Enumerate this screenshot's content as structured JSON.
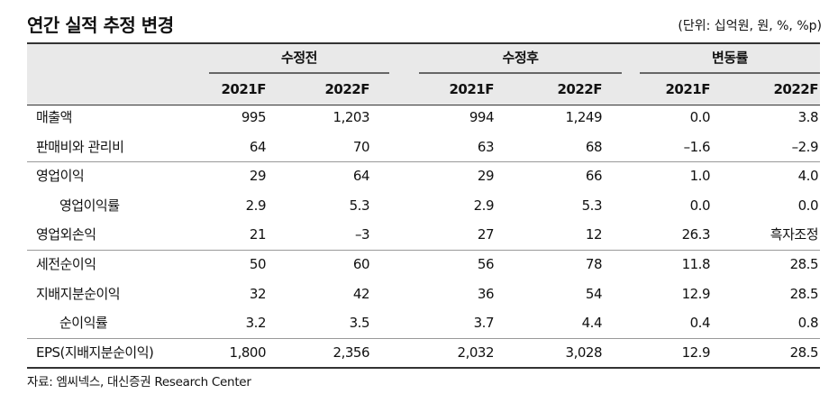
{
  "title": "연간 실적 추정 변경",
  "unit": "(단위: 십억원, 원, %, %p)",
  "table": {
    "groups": [
      "수정전",
      "수정후",
      "변동률"
    ],
    "columns": [
      "2021F",
      "2022F",
      "2021F",
      "2022F",
      "2021F",
      "2022F"
    ],
    "rows": [
      [
        "매출액",
        "995",
        "1,203",
        "994",
        "1,249",
        "0.0",
        "3.8"
      ],
      [
        "판매비와 관리비",
        "64",
        "70",
        "63",
        "68",
        "–1.6",
        "–2.9"
      ],
      [
        "영업이익",
        "29",
        "64",
        "29",
        "66",
        "1.0",
        "4.0"
      ],
      [
        "영업이익률",
        "2.9",
        "5.3",
        "2.9",
        "5.3",
        "0.0",
        "0.0"
      ],
      [
        "영업외손익",
        "21",
        "–3",
        "27",
        "12",
        "26.3",
        "흑자조정"
      ],
      [
        "세전순이익",
        "50",
        "60",
        "56",
        "78",
        "11.8",
        "28.5"
      ],
      [
        "지배지분순이익",
        "32",
        "42",
        "36",
        "54",
        "12.9",
        "28.5"
      ],
      [
        "순이익률",
        "3.2",
        "3.5",
        "3.7",
        "4.4",
        "0.4",
        "0.8"
      ],
      [
        "EPS(지배지분순이익)",
        "1,800",
        "2,356",
        "2,032",
        "3,028",
        "12.9",
        "28.5"
      ]
    ]
  },
  "source": "자료: 엠씨넥스, 대신증권 Research Center"
}
